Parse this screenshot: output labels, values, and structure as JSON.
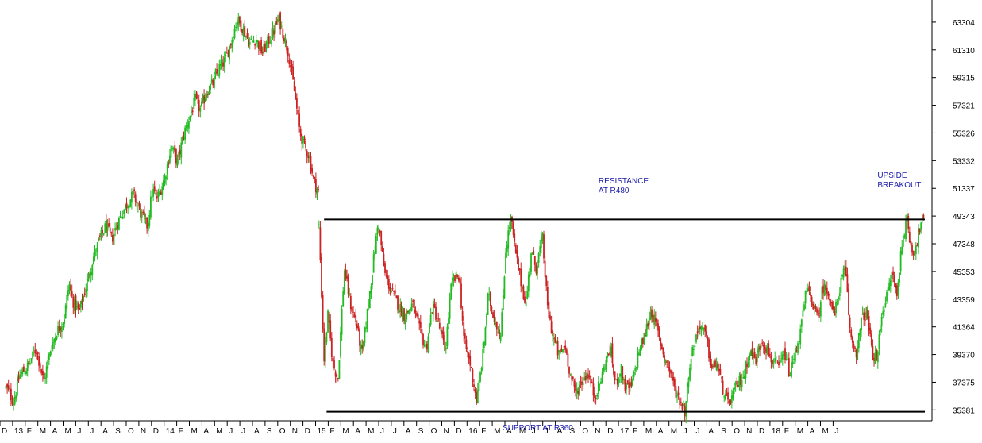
{
  "chart_data": {
    "type": "candlestick",
    "title": "",
    "y_tick_labels": [
      "63304",
      "61310",
      "59315",
      "57321",
      "55326",
      "53332",
      "51337",
      "49343",
      "47348",
      "45353",
      "43359",
      "41364",
      "39370",
      "37375",
      "35381"
    ],
    "y_ticks": [
      63304,
      61310,
      59315,
      57321,
      55326,
      53332,
      51337,
      49343,
      47348,
      45353,
      43359,
      41364,
      39370,
      37375,
      35381
    ],
    "ylim": [
      34600,
      64900
    ],
    "x_tick_labels": [
      "D",
      "13",
      "F",
      "M",
      "A",
      "M",
      "J",
      "J",
      "A",
      "S",
      "O",
      "N",
      "D",
      "14",
      "F",
      "M",
      "A",
      "M",
      "J",
      "J",
      "A",
      "S",
      "O",
      "N",
      "D",
      "15",
      "F",
      "M",
      "A",
      "M",
      "J",
      "J",
      "A",
      "S",
      "O",
      "N",
      "D",
      "16",
      "F",
      "M",
      "A",
      "M",
      "J",
      "J",
      "A",
      "S",
      "O",
      "N",
      "D",
      "17",
      "F",
      "M",
      "A",
      "M",
      "J",
      "J",
      "A",
      "S",
      "O",
      "N",
      "D",
      "18",
      "F",
      "M",
      "A",
      "M",
      "J"
    ],
    "x_range": [
      "Dec 2012",
      "Jun 2018"
    ],
    "up_color": "#22bb22",
    "down_color": "#cc2222",
    "line_color": "#000000",
    "annotation_color": "#1a1aa8",
    "series_path": [
      [
        0,
        37000
      ],
      [
        0.6,
        36000
      ],
      [
        1.1,
        37900
      ],
      [
        1.8,
        38600
      ],
      [
        2.4,
        39800
      ],
      [
        3.0,
        37400
      ],
      [
        3.5,
        39600
      ],
      [
        4.0,
        41000
      ],
      [
        4.6,
        41900
      ],
      [
        5.0,
        44500
      ],
      [
        5.3,
        43200
      ],
      [
        5.8,
        42400
      ],
      [
        6.3,
        44100
      ],
      [
        6.9,
        46300
      ],
      [
        7.4,
        47600
      ],
      [
        7.9,
        48600
      ],
      [
        8.4,
        47700
      ],
      [
        8.9,
        49000
      ],
      [
        9.5,
        50100
      ],
      [
        10.1,
        50900
      ],
      [
        10.7,
        49500
      ],
      [
        11.2,
        48600
      ],
      [
        11.6,
        51200
      ],
      [
        12.0,
        50600
      ],
      [
        12.6,
        52200
      ],
      [
        13.1,
        54400
      ],
      [
        13.6,
        53200
      ],
      [
        14.1,
        55300
      ],
      [
        14.6,
        56600
      ],
      [
        15.0,
        57700
      ],
      [
        15.4,
        57000
      ],
      [
        15.9,
        58300
      ],
      [
        16.4,
        58900
      ],
      [
        16.9,
        60000
      ],
      [
        17.4,
        60600
      ],
      [
        17.9,
        62100
      ],
      [
        18.3,
        63500
      ],
      [
        18.8,
        62800
      ],
      [
        19.3,
        61800
      ],
      [
        19.8,
        62100
      ],
      [
        20.3,
        61100
      ],
      [
        20.7,
        61800
      ],
      [
        21.2,
        62600
      ],
      [
        21.6,
        63600
      ],
      [
        22.0,
        62400
      ],
      [
        22.4,
        61000
      ],
      [
        22.9,
        58000
      ],
      [
        23.3,
        55300
      ],
      [
        23.7,
        54300
      ],
      [
        24.0,
        53700
      ],
      [
        24.4,
        51800
      ],
      [
        24.8,
        51000
      ]
    ],
    "series_path_2": [
      [
        24.8,
        48600
      ],
      [
        25.2,
        39000
      ],
      [
        25.5,
        42200
      ],
      [
        25.9,
        38700
      ],
      [
        26.3,
        37600
      ],
      [
        26.8,
        45500
      ],
      [
        27.3,
        43000
      ],
      [
        27.8,
        41500
      ],
      [
        28.2,
        39300
      ],
      [
        28.6,
        42200
      ],
      [
        29.1,
        46000
      ],
      [
        29.5,
        49000
      ],
      [
        30.0,
        45200
      ],
      [
        30.5,
        44000
      ],
      [
        31.0,
        43100
      ],
      [
        31.6,
        42100
      ],
      [
        32.2,
        43000
      ],
      [
        32.8,
        41000
      ],
      [
        33.3,
        39800
      ],
      [
        33.8,
        43000
      ],
      [
        34.3,
        41500
      ],
      [
        34.8,
        39600
      ],
      [
        35.3,
        44500
      ],
      [
        35.9,
        45100
      ],
      [
        36.3,
        40300
      ],
      [
        36.8,
        38600
      ],
      [
        37.3,
        36000
      ],
      [
        37.8,
        39500
      ],
      [
        38.2,
        43600
      ],
      [
        38.7,
        42000
      ],
      [
        39.2,
        40600
      ],
      [
        39.6,
        47000
      ],
      [
        40.0,
        49200
      ],
      [
        40.4,
        46500
      ],
      [
        40.8,
        44600
      ],
      [
        41.2,
        43000
      ],
      [
        41.6,
        46800
      ],
      [
        42.0,
        45600
      ],
      [
        42.5,
        47800
      ],
      [
        42.9,
        42800
      ],
      [
        43.3,
        40800
      ],
      [
        43.8,
        39300
      ],
      [
        44.3,
        40000
      ],
      [
        44.7,
        38000
      ],
      [
        45.1,
        36600
      ],
      [
        45.6,
        37400
      ],
      [
        46.1,
        38100
      ],
      [
        46.6,
        36400
      ],
      [
        47.0,
        37100
      ],
      [
        47.5,
        38900
      ],
      [
        47.9,
        39800
      ],
      [
        48.3,
        37100
      ],
      [
        48.7,
        38400
      ],
      [
        49.1,
        36900
      ],
      [
        49.6,
        37100
      ],
      [
        50.1,
        39500
      ],
      [
        50.6,
        40700
      ],
      [
        51.1,
        42600
      ],
      [
        51.6,
        41100
      ],
      [
        52.1,
        39400
      ],
      [
        52.6,
        38200
      ],
      [
        53.0,
        36800
      ],
      [
        53.4,
        36100
      ],
      [
        53.8,
        35300
      ],
      [
        54.2,
        38900
      ],
      [
        54.6,
        40400
      ],
      [
        55.0,
        41600
      ],
      [
        55.5,
        40500
      ],
      [
        55.9,
        38300
      ],
      [
        56.3,
        38800
      ],
      [
        56.8,
        36900
      ],
      [
        57.2,
        35700
      ],
      [
        57.6,
        36500
      ],
      [
        58.1,
        37400
      ],
      [
        58.5,
        38000
      ],
      [
        58.9,
        39600
      ],
      [
        59.4,
        39000
      ],
      [
        59.9,
        40500
      ],
      [
        60.3,
        39700
      ],
      [
        60.7,
        38900
      ],
      [
        61.2,
        38400
      ],
      [
        61.7,
        39500
      ],
      [
        62.1,
        37900
      ],
      [
        62.6,
        39800
      ],
      [
        63.0,
        41300
      ],
      [
        63.4,
        44000
      ],
      [
        63.8,
        43500
      ],
      [
        64.3,
        41800
      ],
      [
        64.7,
        44200
      ],
      [
        65.2,
        43900
      ],
      [
        65.6,
        42000
      ],
      [
        66.1,
        44400
      ],
      [
        66.5,
        45600
      ],
      [
        66.9,
        40700
      ],
      [
        67.4,
        39500
      ],
      [
        67.8,
        41900
      ],
      [
        68.2,
        42400
      ],
      [
        68.6,
        39500
      ],
      [
        69.0,
        38900
      ],
      [
        69.4,
        42500
      ],
      [
        69.8,
        43600
      ],
      [
        70.2,
        45300
      ],
      [
        70.6,
        43600
      ],
      [
        71.0,
        47700
      ],
      [
        71.4,
        49100
      ],
      [
        71.7,
        47100
      ],
      [
        72.0,
        46800
      ],
      [
        72.4,
        48500
      ],
      [
        72.7,
        49100
      ]
    ],
    "lines": [
      {
        "from_index": 25.2,
        "to_index": 72.8,
        "y": 49100
      },
      {
        "from_index": 25.4,
        "to_index": 72.8,
        "y": 35250
      }
    ],
    "annotations": [
      {
        "lines": [
          "RESISTANCE",
          "AT R480"
        ],
        "at_index": 47.7,
        "y": 51700
      },
      {
        "lines": [
          "SUPPORT AT R360"
        ],
        "at_index": 40.1,
        "y": 33900
      },
      {
        "lines": [
          "UPSIDE",
          "BREAKOUT"
        ],
        "at_index": 69.8,
        "y": 52100
      }
    ]
  }
}
